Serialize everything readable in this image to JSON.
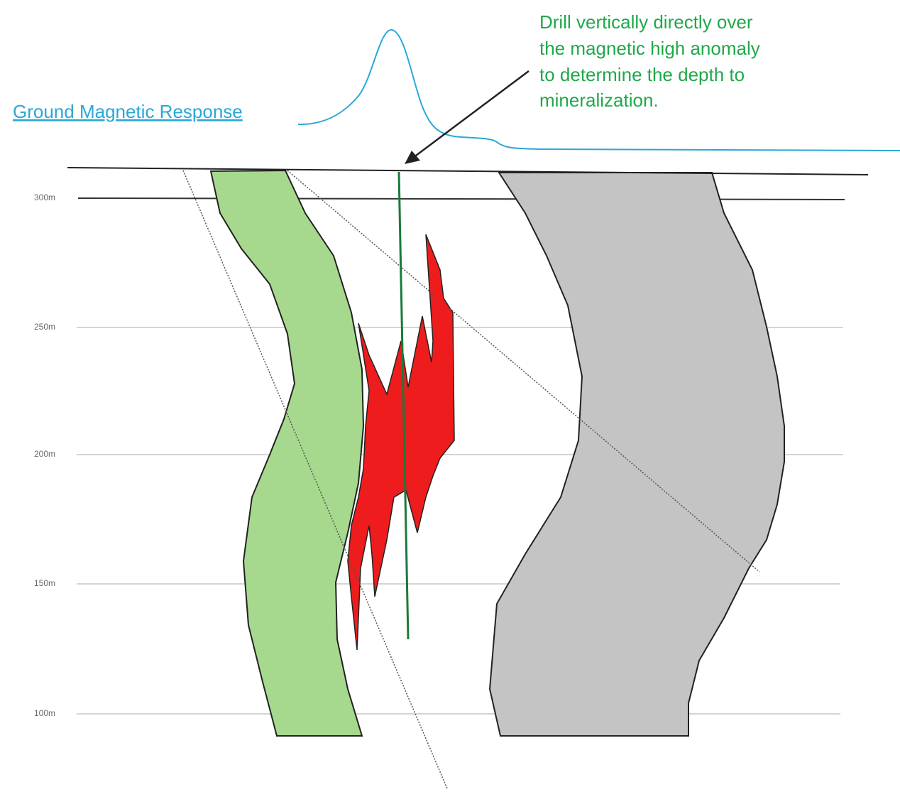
{
  "annotation": {
    "lines": [
      "Drill vertically directly over",
      "the magnetic high anomaly",
      "to determine the depth to",
      "mineralization."
    ]
  },
  "magnetic_label": "Ground Magnetic Response",
  "depth_labels": [
    "300m",
    "250m",
    "200m",
    "150m",
    "100m"
  ]
}
